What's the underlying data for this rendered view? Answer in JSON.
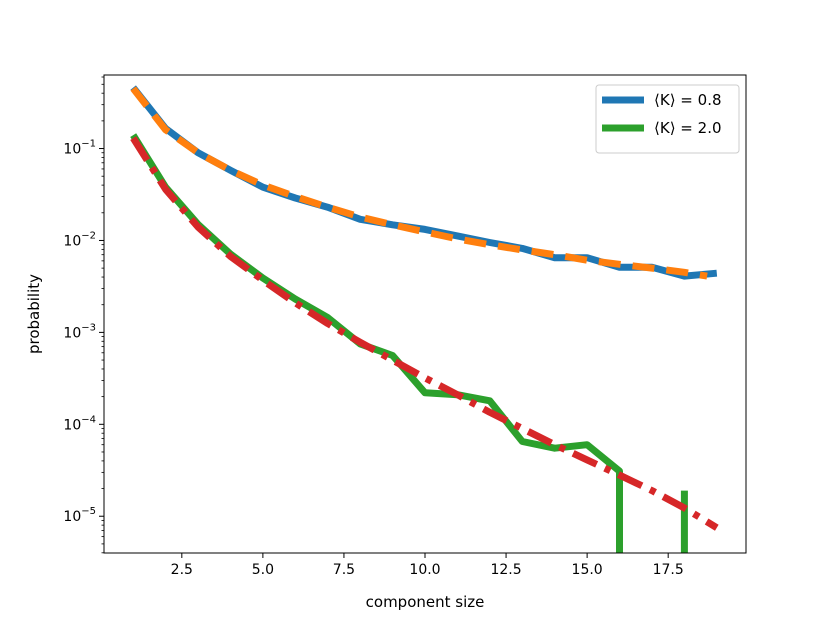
{
  "chart_data": {
    "type": "line",
    "title": "",
    "xlabel": "component size",
    "ylabel": "probability",
    "xlim": [
      0.1,
      19.9
    ],
    "ylim_log10": [
      -5.4,
      -0.2
    ],
    "yscale": "log",
    "grid": false,
    "legend": {
      "placement": "top-right",
      "entries": [
        {
          "label": "⟨K⟩ = 0.8",
          "color": "#1f77b4"
        },
        {
          "label": "⟨K⟩ = 2.0",
          "color": "#2ca02c"
        }
      ]
    },
    "x_ticks": [
      {
        "value": 2.5,
        "label": "2.5"
      },
      {
        "value": 5.0,
        "label": "5.0"
      },
      {
        "value": 7.5,
        "label": "7.5"
      },
      {
        "value": 10.0,
        "label": "10.0"
      },
      {
        "value": 12.5,
        "label": "12.5"
      },
      {
        "value": 15.0,
        "label": "15.0"
      },
      {
        "value": 17.5,
        "label": "17.5"
      }
    ],
    "y_ticks": [
      {
        "value": 0.1,
        "base": "10",
        "exp": "−1"
      },
      {
        "value": 0.01,
        "base": "10",
        "exp": "−2"
      },
      {
        "value": 0.001,
        "base": "10",
        "exp": "−3"
      },
      {
        "value": 0.0001,
        "base": "10",
        "exp": "−4"
      },
      {
        "value": 1e-05,
        "base": "10",
        "exp": "−5"
      }
    ],
    "series": [
      {
        "name": "⟨K⟩ = 0.8",
        "color": "#1f77b4",
        "style": "solid",
        "x": [
          1,
          2,
          3,
          4,
          5,
          6,
          7,
          8,
          9,
          10,
          11,
          12,
          13,
          14,
          15,
          16,
          17,
          18,
          19
        ],
        "y": [
          0.46,
          0.165,
          0.09,
          0.058,
          0.038,
          0.029,
          0.023,
          0.017,
          0.0148,
          0.0132,
          0.0112,
          0.0095,
          0.0082,
          0.0065,
          0.0065,
          0.0051,
          0.0051,
          0.0041,
          0.0044
        ]
      },
      {
        "name": "",
        "color": "#ff7f0e",
        "style": "dashed",
        "x": [
          1,
          2,
          3,
          4,
          5,
          6,
          7,
          8,
          9,
          10,
          11,
          12,
          13,
          14,
          15,
          16,
          17,
          18,
          18.7
        ],
        "y": [
          0.45,
          0.16,
          0.09,
          0.058,
          0.04,
          0.03,
          0.023,
          0.018,
          0.0148,
          0.0124,
          0.0104,
          0.009,
          0.0079,
          0.007,
          0.0061,
          0.0055,
          0.005,
          0.0045,
          0.0041
        ]
      },
      {
        "name": "⟨K⟩ = 2.0",
        "color": "#2ca02c",
        "style": "solid",
        "x": [
          1,
          2,
          3,
          4,
          5,
          6,
          7,
          8,
          9,
          10,
          11,
          12,
          13,
          14,
          15,
          16,
          16,
          null,
          18,
          18
        ],
        "y": [
          0.14,
          0.038,
          0.015,
          0.0071,
          0.0039,
          0.0023,
          0.00145,
          0.00075,
          0.00056,
          0.00022,
          0.00021,
          0.00018,
          6.5e-05,
          5.5e-05,
          6e-05,
          3.1e-05,
          1e-06,
          null,
          1e-06,
          1.9e-05
        ]
      },
      {
        "name": "",
        "color": "#d62728",
        "style": "dashdot",
        "x": [
          1,
          2,
          3,
          4,
          5,
          6,
          7,
          8,
          9,
          10,
          11,
          12,
          13,
          14,
          15,
          16,
          17,
          18,
          19
        ],
        "y": [
          0.13,
          0.036,
          0.014,
          0.0067,
          0.0037,
          0.0021,
          0.00125,
          0.00078,
          0.0005,
          0.00032,
          0.00021,
          0.000135,
          9e-05,
          6e-05,
          4.1e-05,
          2.8e-05,
          1.9e-05,
          1.23e-05,
          7.5e-06
        ]
      }
    ]
  }
}
